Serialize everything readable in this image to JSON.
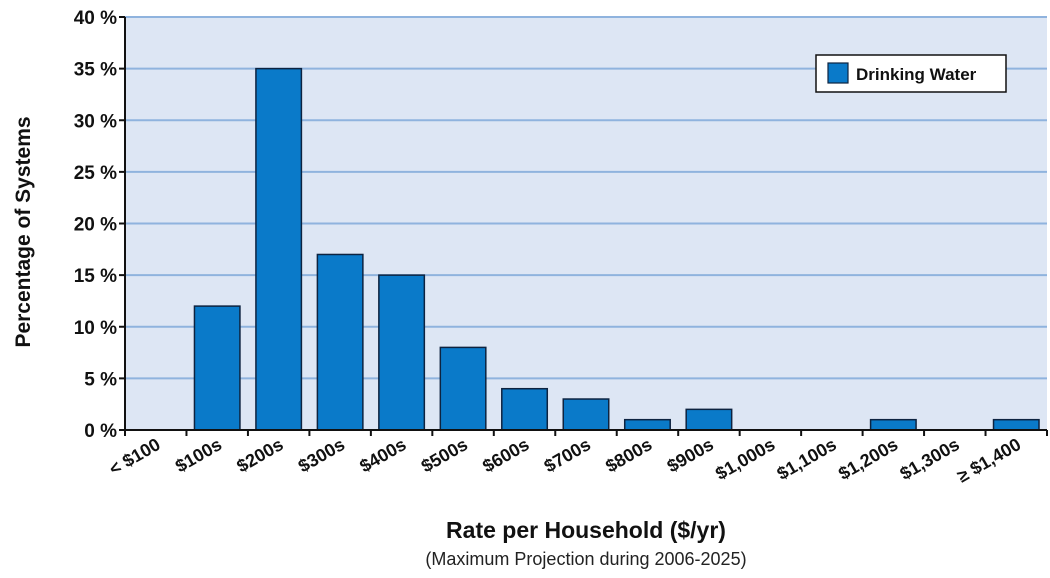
{
  "colors": {
    "plot_background": "#dde6f4",
    "gridline": "#8fb3de",
    "bar_fill": "#0a7ac9",
    "bar_stroke": "#0d2340",
    "axis": "#111111"
  },
  "chart_data": {
    "type": "bar",
    "categories": [
      "< $100",
      "$100s",
      "$200s",
      "$300s",
      "$400s",
      "$500s",
      "$600s",
      "$700s",
      "$800s",
      "$900s",
      "$1,000s",
      "$1,100s",
      "$1,200s",
      "$1,300s",
      "≥ $1,400"
    ],
    "series": [
      {
        "name": "Drinking Water",
        "values": [
          0,
          12,
          35,
          17,
          15,
          8,
          4,
          3,
          1,
          2,
          0,
          0,
          1,
          0,
          1
        ]
      }
    ],
    "ylim": [
      0,
      40
    ],
    "yticks": [
      0,
      5,
      10,
      15,
      20,
      25,
      30,
      35,
      40
    ],
    "ytick_labels": [
      "0 %",
      "5 %",
      "10 %",
      "15 %",
      "20 %",
      "25 %",
      "30 %",
      "35 %",
      "40 %"
    ],
    "xlabel": "Rate per Household ($/yr)",
    "xlabel_note": "(Maximum Projection during 2006-2025)",
    "ylabel": "Percentage of Systems",
    "grid": true,
    "legend_position": "top-right"
  }
}
